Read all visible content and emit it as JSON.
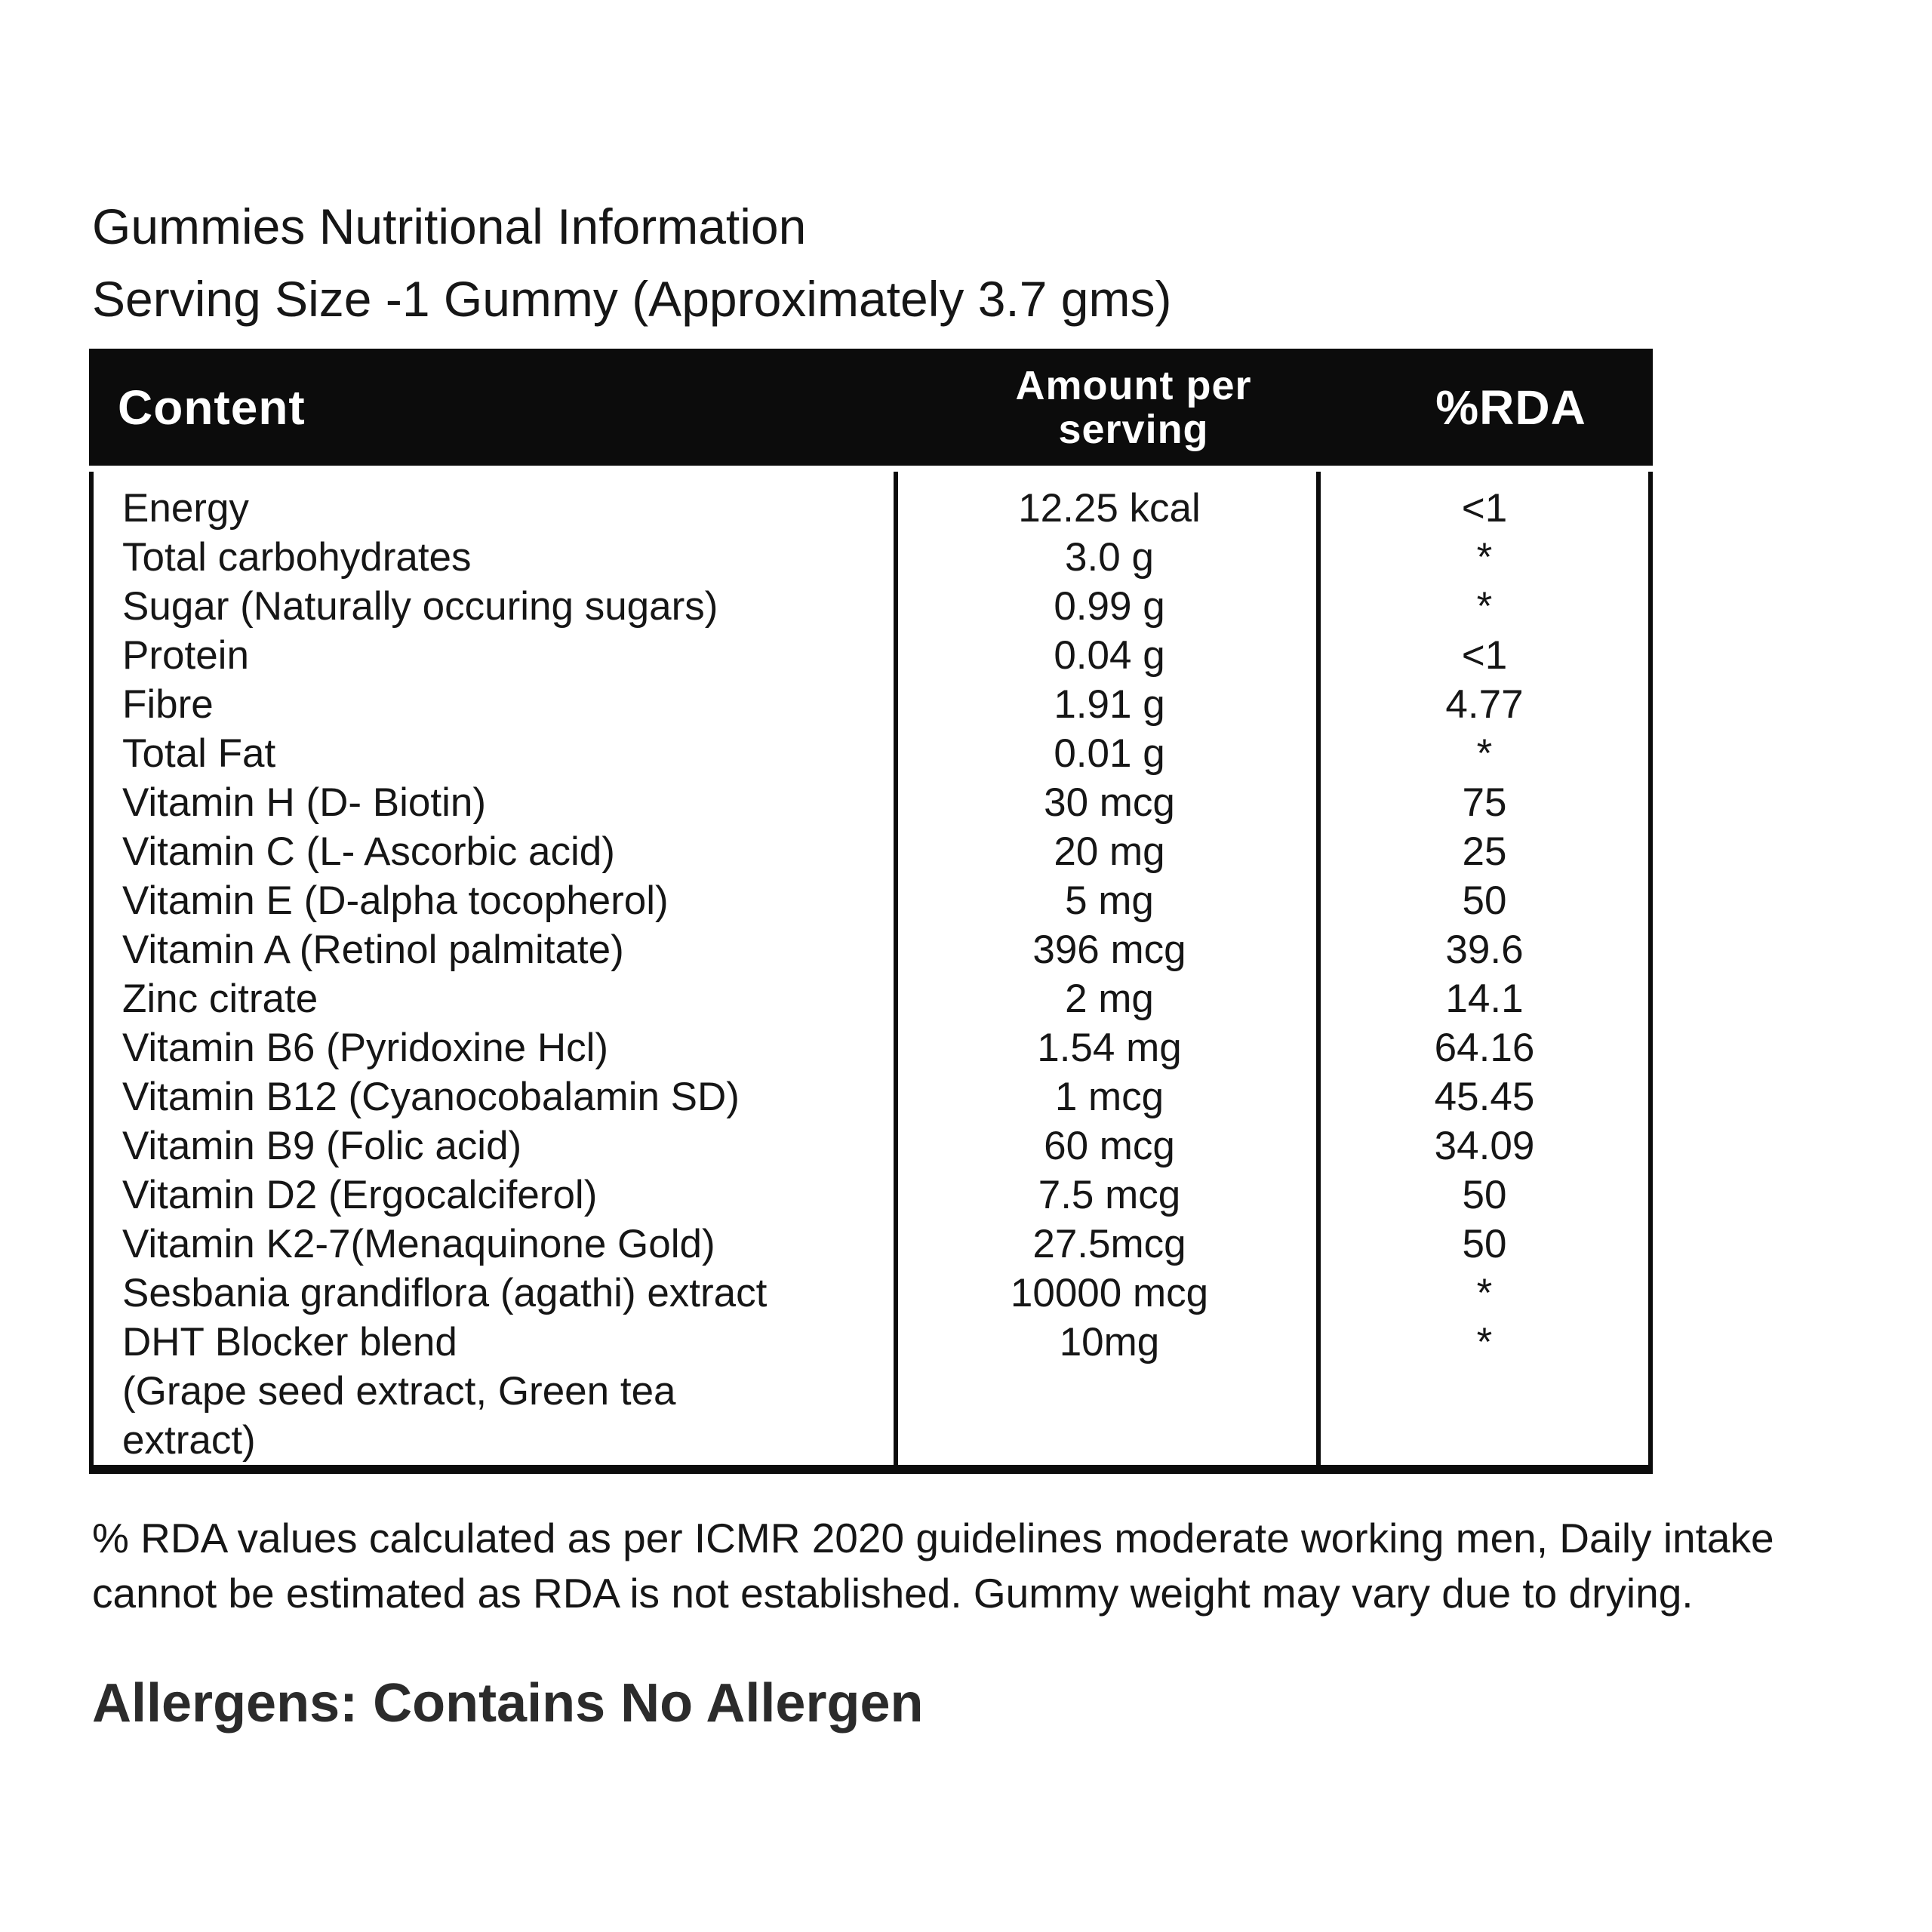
{
  "title": {
    "line1": "Gummies Nutritional Information",
    "line2": "Serving Size -1 Gummy (Approximately 3.7 gms)"
  },
  "table": {
    "headers": {
      "content": "Content",
      "amount_line1": "Amount per",
      "amount_line2": "serving",
      "rda": "%RDA"
    },
    "rows": [
      {
        "content": "Energy",
        "amount": "12.25 kcal",
        "rda": "<1"
      },
      {
        "content": "Total carbohydrates",
        "amount": "3.0 g",
        "rda": "*"
      },
      {
        "content": "Sugar (Naturally occuring sugars)",
        "amount": "0.99 g",
        "rda": "*"
      },
      {
        "content": "Protein",
        "amount": "0.04 g",
        "rda": "<1"
      },
      {
        "content": "Fibre",
        "amount": "1.91 g",
        "rda": "4.77"
      },
      {
        "content": "Total Fat",
        "amount": "0.01 g",
        "rda": "*"
      },
      {
        "content": "Vitamin H (D- Biotin)",
        "amount": "30 mcg",
        "rda": "75"
      },
      {
        "content": "Vitamin C (L- Ascorbic acid)",
        "amount": "20 mg",
        "rda": "25"
      },
      {
        "content": "Vitamin E (D-alpha tocopherol)",
        "amount": "5 mg",
        "rda": "50"
      },
      {
        "content": "Vitamin A (Retinol palmitate)",
        "amount": "396 mcg",
        "rda": "39.6"
      },
      {
        "content": "Zinc citrate",
        "amount": "2 mg",
        "rda": "14.1"
      },
      {
        "content": "Vitamin B6 (Pyridoxine Hcl)",
        "amount": "1.54 mg",
        "rda": "64.16"
      },
      {
        "content": "Vitamin B12 (Cyanocobalamin SD)",
        "amount": "1 mcg",
        "rda": "45.45"
      },
      {
        "content": "Vitamin B9 (Folic acid)",
        "amount": "60 mcg",
        "rda": "34.09"
      },
      {
        "content": "Vitamin D2 (Ergocalciferol)",
        "amount": "7.5 mcg",
        "rda": "50"
      },
      {
        "content": "Vitamin K2-7(Menaquinone Gold)",
        "amount": "27.5mcg",
        "rda": "50"
      },
      {
        "content": "Sesbania grandiflora (agathi) extract",
        "amount": "10000 mcg",
        "rda": "*"
      },
      {
        "content": "DHT Blocker blend",
        "amount": "10mg",
        "rda": "*"
      },
      {
        "content": "(Grape seed extract, Green tea",
        "amount": "",
        "rda": ""
      },
      {
        "content": "extract)",
        "amount": "",
        "rda": ""
      }
    ]
  },
  "footnote_line1": "% RDA values calculated as per ICMR 2020 guidelines moderate working men, Daily intake",
  "footnote_line2": "cannot be estimated as RDA is not established. Gummy weight may vary due to drying.",
  "allergens": {
    "label": "Allergens:",
    "value": "Contains No Allergen"
  },
  "colors": {
    "header_bg": "#0c0c0c",
    "border": "#0c0c0c",
    "text": "#161616",
    "header_text": "#ffffff"
  }
}
